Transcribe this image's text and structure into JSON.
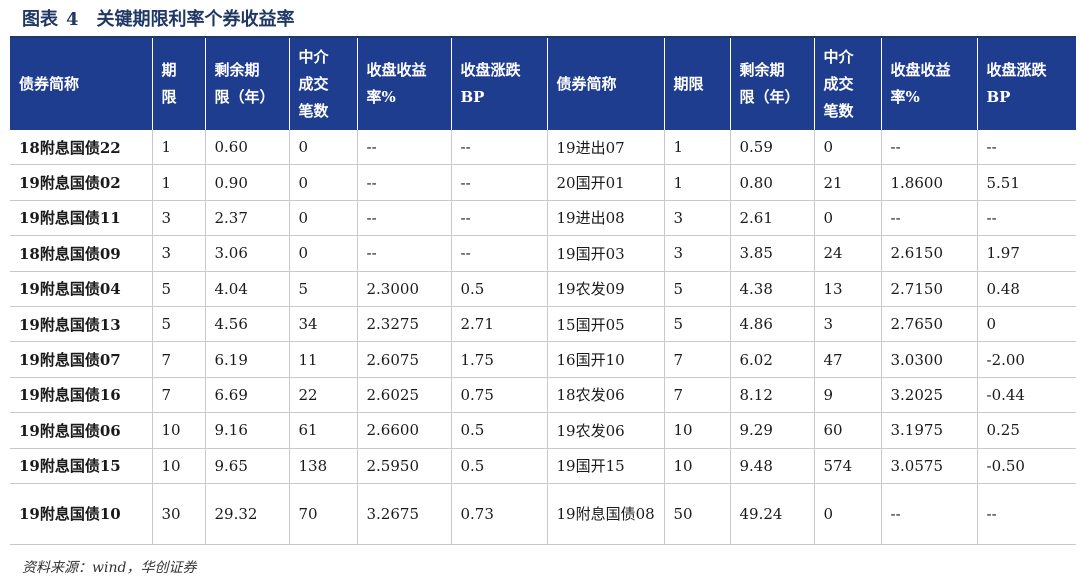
{
  "title": {
    "label": "图表",
    "number": "4",
    "text": "关键期限利率个券收益率"
  },
  "table": {
    "headers": [
      [
        "债券简称"
      ],
      [
        "期",
        "限"
      ],
      [
        "剩余期",
        "限（年）"
      ],
      [
        "中介",
        "成交",
        "笔数"
      ],
      [
        "收盘收益",
        "率%"
      ],
      [
        "收盘涨跌",
        "BP"
      ],
      [
        "债券简称"
      ],
      [
        "期限"
      ],
      [
        "剩余期",
        "限（年）"
      ],
      [
        "中介",
        "成交",
        "笔数"
      ],
      [
        "收盘收益",
        "率%"
      ],
      [
        "收盘涨跌",
        "BP"
      ]
    ],
    "rows": [
      [
        "18附息国债22",
        "1",
        "0.60",
        "0",
        "--",
        "--",
        "19进出07",
        "1",
        "0.59",
        "0",
        "--",
        "--"
      ],
      [
        "19附息国债02",
        "1",
        "0.90",
        "0",
        "--",
        "--",
        "20国开01",
        "1",
        "0.80",
        "21",
        "1.8600",
        "5.51"
      ],
      [
        "19附息国债11",
        "3",
        "2.37",
        "0",
        "--",
        "--",
        "19进出08",
        "3",
        "2.61",
        "0",
        "--",
        "--"
      ],
      [
        "18附息国债09",
        "3",
        "3.06",
        "0",
        "--",
        "--",
        "19国开03",
        "3",
        "3.85",
        "24",
        "2.6150",
        "1.97"
      ],
      [
        "19附息国债04",
        "5",
        "4.04",
        "5",
        "2.3000",
        "0.5",
        "19农发09",
        "5",
        "4.38",
        "13",
        "2.7150",
        "0.48"
      ],
      [
        "19附息国债13",
        "5",
        "4.56",
        "34",
        "2.3275",
        "2.71",
        "15国开05",
        "5",
        "4.86",
        "3",
        "2.7650",
        "0"
      ],
      [
        "19附息国债07",
        "7",
        "6.19",
        "11",
        "2.6075",
        "1.75",
        "16国开10",
        "7",
        "6.02",
        "47",
        "3.0300",
        "-2.00"
      ],
      [
        "19附息国债16",
        "7",
        "6.69",
        "22",
        "2.6025",
        "0.75",
        "18农发06",
        "7",
        "8.12",
        "9",
        "3.2025",
        "-0.44"
      ],
      [
        "19附息国债06",
        "10",
        "9.16",
        "61",
        "2.6600",
        "0.5",
        "19农发06",
        "10",
        "9.29",
        "60",
        "3.1975",
        "0.25"
      ],
      [
        "19附息国债15",
        "10",
        "9.65",
        "138",
        "2.5950",
        "0.5",
        "19国开15",
        "10",
        "9.48",
        "574",
        "3.0575",
        "-0.50"
      ],
      [
        "19附息国债10",
        "30",
        "29.32",
        "70",
        "3.2675",
        "0.73",
        "19附息国债08",
        "50",
        "49.24",
        "0",
        "--",
        "--"
      ]
    ]
  },
  "source": "资料来源：wind，华创证券"
}
